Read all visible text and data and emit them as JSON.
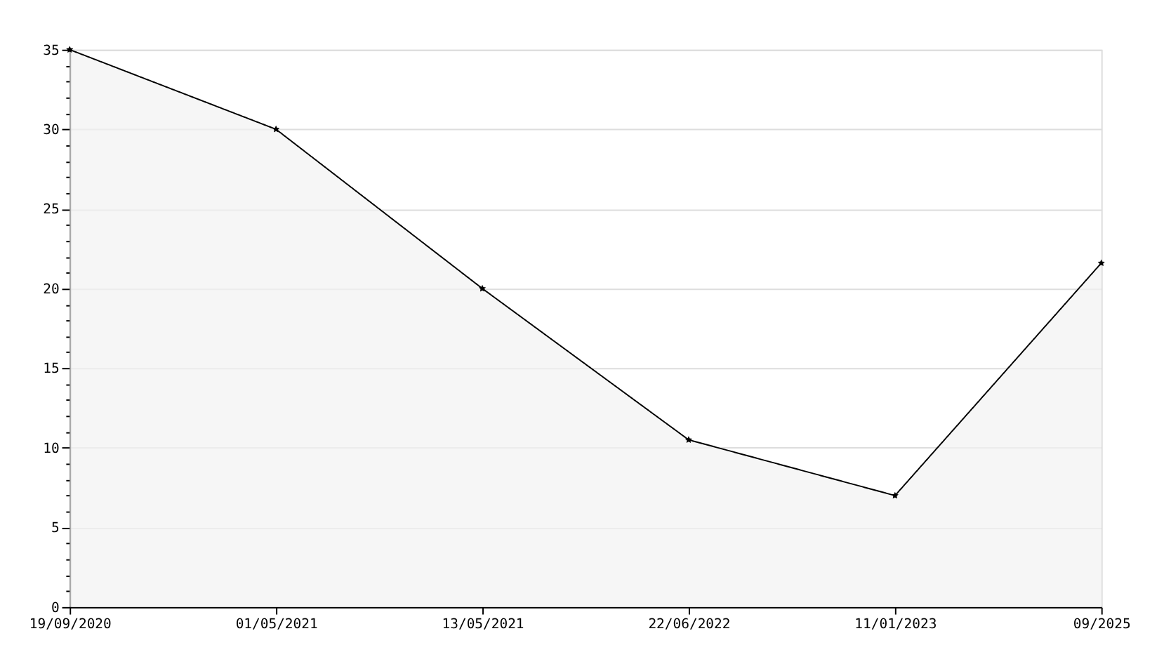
{
  "chart_data": {
    "type": "area",
    "categories": [
      "19/09/2020",
      "01/05/2021",
      "13/05/2021",
      "22/06/2022",
      "11/01/2023",
      "09/2025"
    ],
    "series": [
      {
        "color": "#000000",
        "values": [
          35,
          30,
          20,
          10.5,
          7,
          21.6
        ]
      }
    ],
    "ylim": [
      0,
      35
    ],
    "yticks": [
      0,
      {
        "value": 1,
        "label": null
      },
      {
        "value": 2,
        "label": null
      },
      {
        "value": 3,
        "label": null
      },
      {
        "value": 4,
        "label": null
      },
      5,
      {
        "value": 6,
        "label": null
      },
      {
        "value": 7,
        "label": null
      },
      {
        "value": 8,
        "label": null
      },
      {
        "value": 9,
        "label": null
      },
      10,
      {
        "value": 11,
        "label": null
      },
      {
        "value": 12,
        "label": null
      },
      {
        "value": 13,
        "label": null
      },
      {
        "value": 14,
        "label": null
      },
      15,
      {
        "value": 16,
        "label": null
      },
      {
        "value": 17,
        "label": null
      },
      {
        "value": 18,
        "label": null
      },
      {
        "value": 19,
        "label": null
      },
      20,
      {
        "value": 21,
        "label": null
      },
      {
        "value": 22,
        "label": null
      },
      {
        "value": 23,
        "label": null
      },
      {
        "value": 24,
        "label": null
      },
      25,
      {
        "value": 26,
        "label": null
      },
      {
        "value": 27,
        "label": null
      },
      {
        "value": 28,
        "label": null
      },
      {
        "value": 29,
        "label": null
      },
      30,
      {
        "value": 31,
        "label": null
      },
      {
        "value": 32,
        "label": null
      },
      {
        "value": 33,
        "label": null
      },
      {
        "value": 34,
        "label": null
      },
      35
    ],
    "grid": "y",
    "marker": "star",
    "line_style": "solid"
  }
}
